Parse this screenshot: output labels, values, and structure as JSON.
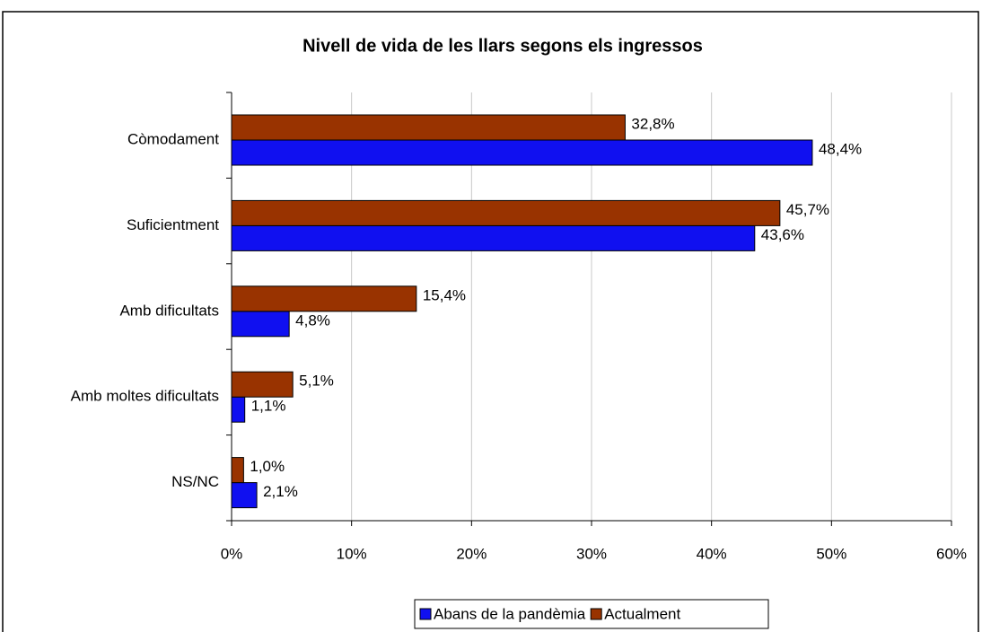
{
  "chart_data": {
    "type": "hbar",
    "title": "Nivell de vida de les llars segons els ingressos",
    "categories": [
      "Còmodament",
      "Suficientment",
      "Amb dificultats",
      "Amb moltes dificultats",
      "NS/NC"
    ],
    "series": [
      {
        "name": "Abans de la pandèmia",
        "color": "#1010f0",
        "values": [
          48.4,
          43.6,
          4.8,
          1.1,
          2.1
        ],
        "value_labels": [
          "48,4%",
          "43,6%",
          "4,8%",
          "1,1%",
          "2,1%"
        ]
      },
      {
        "name": "Actualment",
        "color": "#993300",
        "values": [
          32.8,
          45.7,
          15.4,
          5.1,
          1.0
        ],
        "value_labels": [
          "32,8%",
          "45,7%",
          "15,4%",
          "5,1%",
          "1,0%"
        ]
      }
    ],
    "xlim": [
      0,
      60
    ],
    "xticks": [
      {
        "value": 0,
        "label": "0%"
      },
      {
        "value": 10,
        "label": "10%"
      },
      {
        "value": 20,
        "label": "20%"
      },
      {
        "value": 30,
        "label": "30%"
      },
      {
        "value": 40,
        "label": "40%"
      },
      {
        "value": 50,
        "label": "50%"
      },
      {
        "value": 60,
        "label": "60%"
      }
    ],
    "grid": true,
    "legend": "bottom"
  }
}
